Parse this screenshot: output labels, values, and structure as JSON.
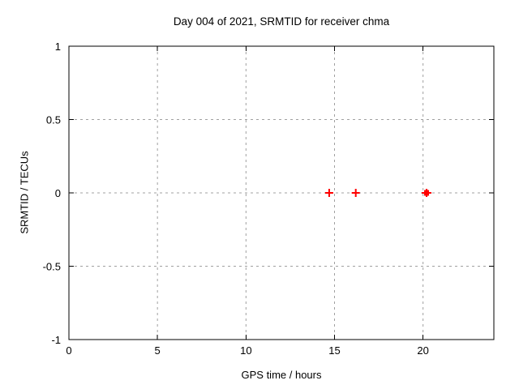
{
  "chart_data": {
    "type": "scatter",
    "title": "Day 004 of 2021, SRMTID for receiver chma",
    "xlabel": "GPS time / hours",
    "ylabel": "SRMTID / TECUs",
    "xlim": [
      0,
      24
    ],
    "ylim": [
      -1,
      1
    ],
    "grid": true,
    "legend": "none",
    "xticks": [
      {
        "v": 0,
        "label": "0"
      },
      {
        "v": 5,
        "label": "5"
      },
      {
        "v": 10,
        "label": "10"
      },
      {
        "v": 15,
        "label": "15"
      },
      {
        "v": 20,
        "label": "20"
      }
    ],
    "yticks": [
      {
        "v": -1,
        "label": "-1"
      },
      {
        "v": -0.5,
        "label": "-0.5"
      },
      {
        "v": 0,
        "label": "0"
      },
      {
        "v": 0.5,
        "label": "0.5"
      },
      {
        "v": 1,
        "label": "1"
      }
    ],
    "series": [
      {
        "name": "SRMTID",
        "marker": "plus",
        "color": "#ff0000",
        "points": [
          {
            "x": 14.7,
            "y": 0
          },
          {
            "x": 16.2,
            "y": 0
          },
          {
            "x": 20.2,
            "y": 0,
            "bold": true
          }
        ]
      }
    ],
    "colors": {
      "background": "#ffffff",
      "axis": "#000000",
      "grid": "#a0a0a0",
      "marker": "#ff0000"
    }
  }
}
